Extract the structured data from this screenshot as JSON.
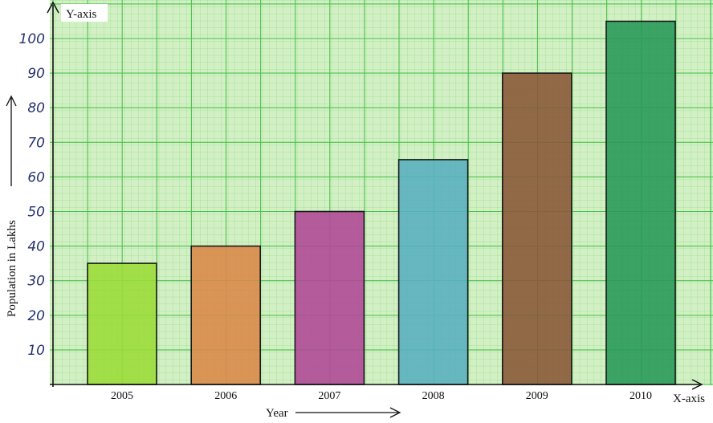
{
  "chart_data": {
    "type": "bar",
    "categories": [
      "2005",
      "2006",
      "2007",
      "2008",
      "2009",
      "2010"
    ],
    "values": [
      35,
      40,
      50,
      65,
      90,
      105
    ],
    "colors": [
      "#9bdc3a",
      "#d98a4a",
      "#b04a98",
      "#5ab0c0",
      "#8a5a3a",
      "#2a9a5a"
    ],
    "xlabel": "Year",
    "ylabel": "Population in Lakhs",
    "x_axis_name": "X-axis",
    "y_axis_name": "Y-axis",
    "yticks": [
      10,
      20,
      30,
      40,
      50,
      60,
      70,
      80,
      90,
      100
    ],
    "ylim": [
      0,
      110
    ],
    "grid": true,
    "grid_color": "#4cc24c",
    "paper_color": "#d2f0c4"
  }
}
